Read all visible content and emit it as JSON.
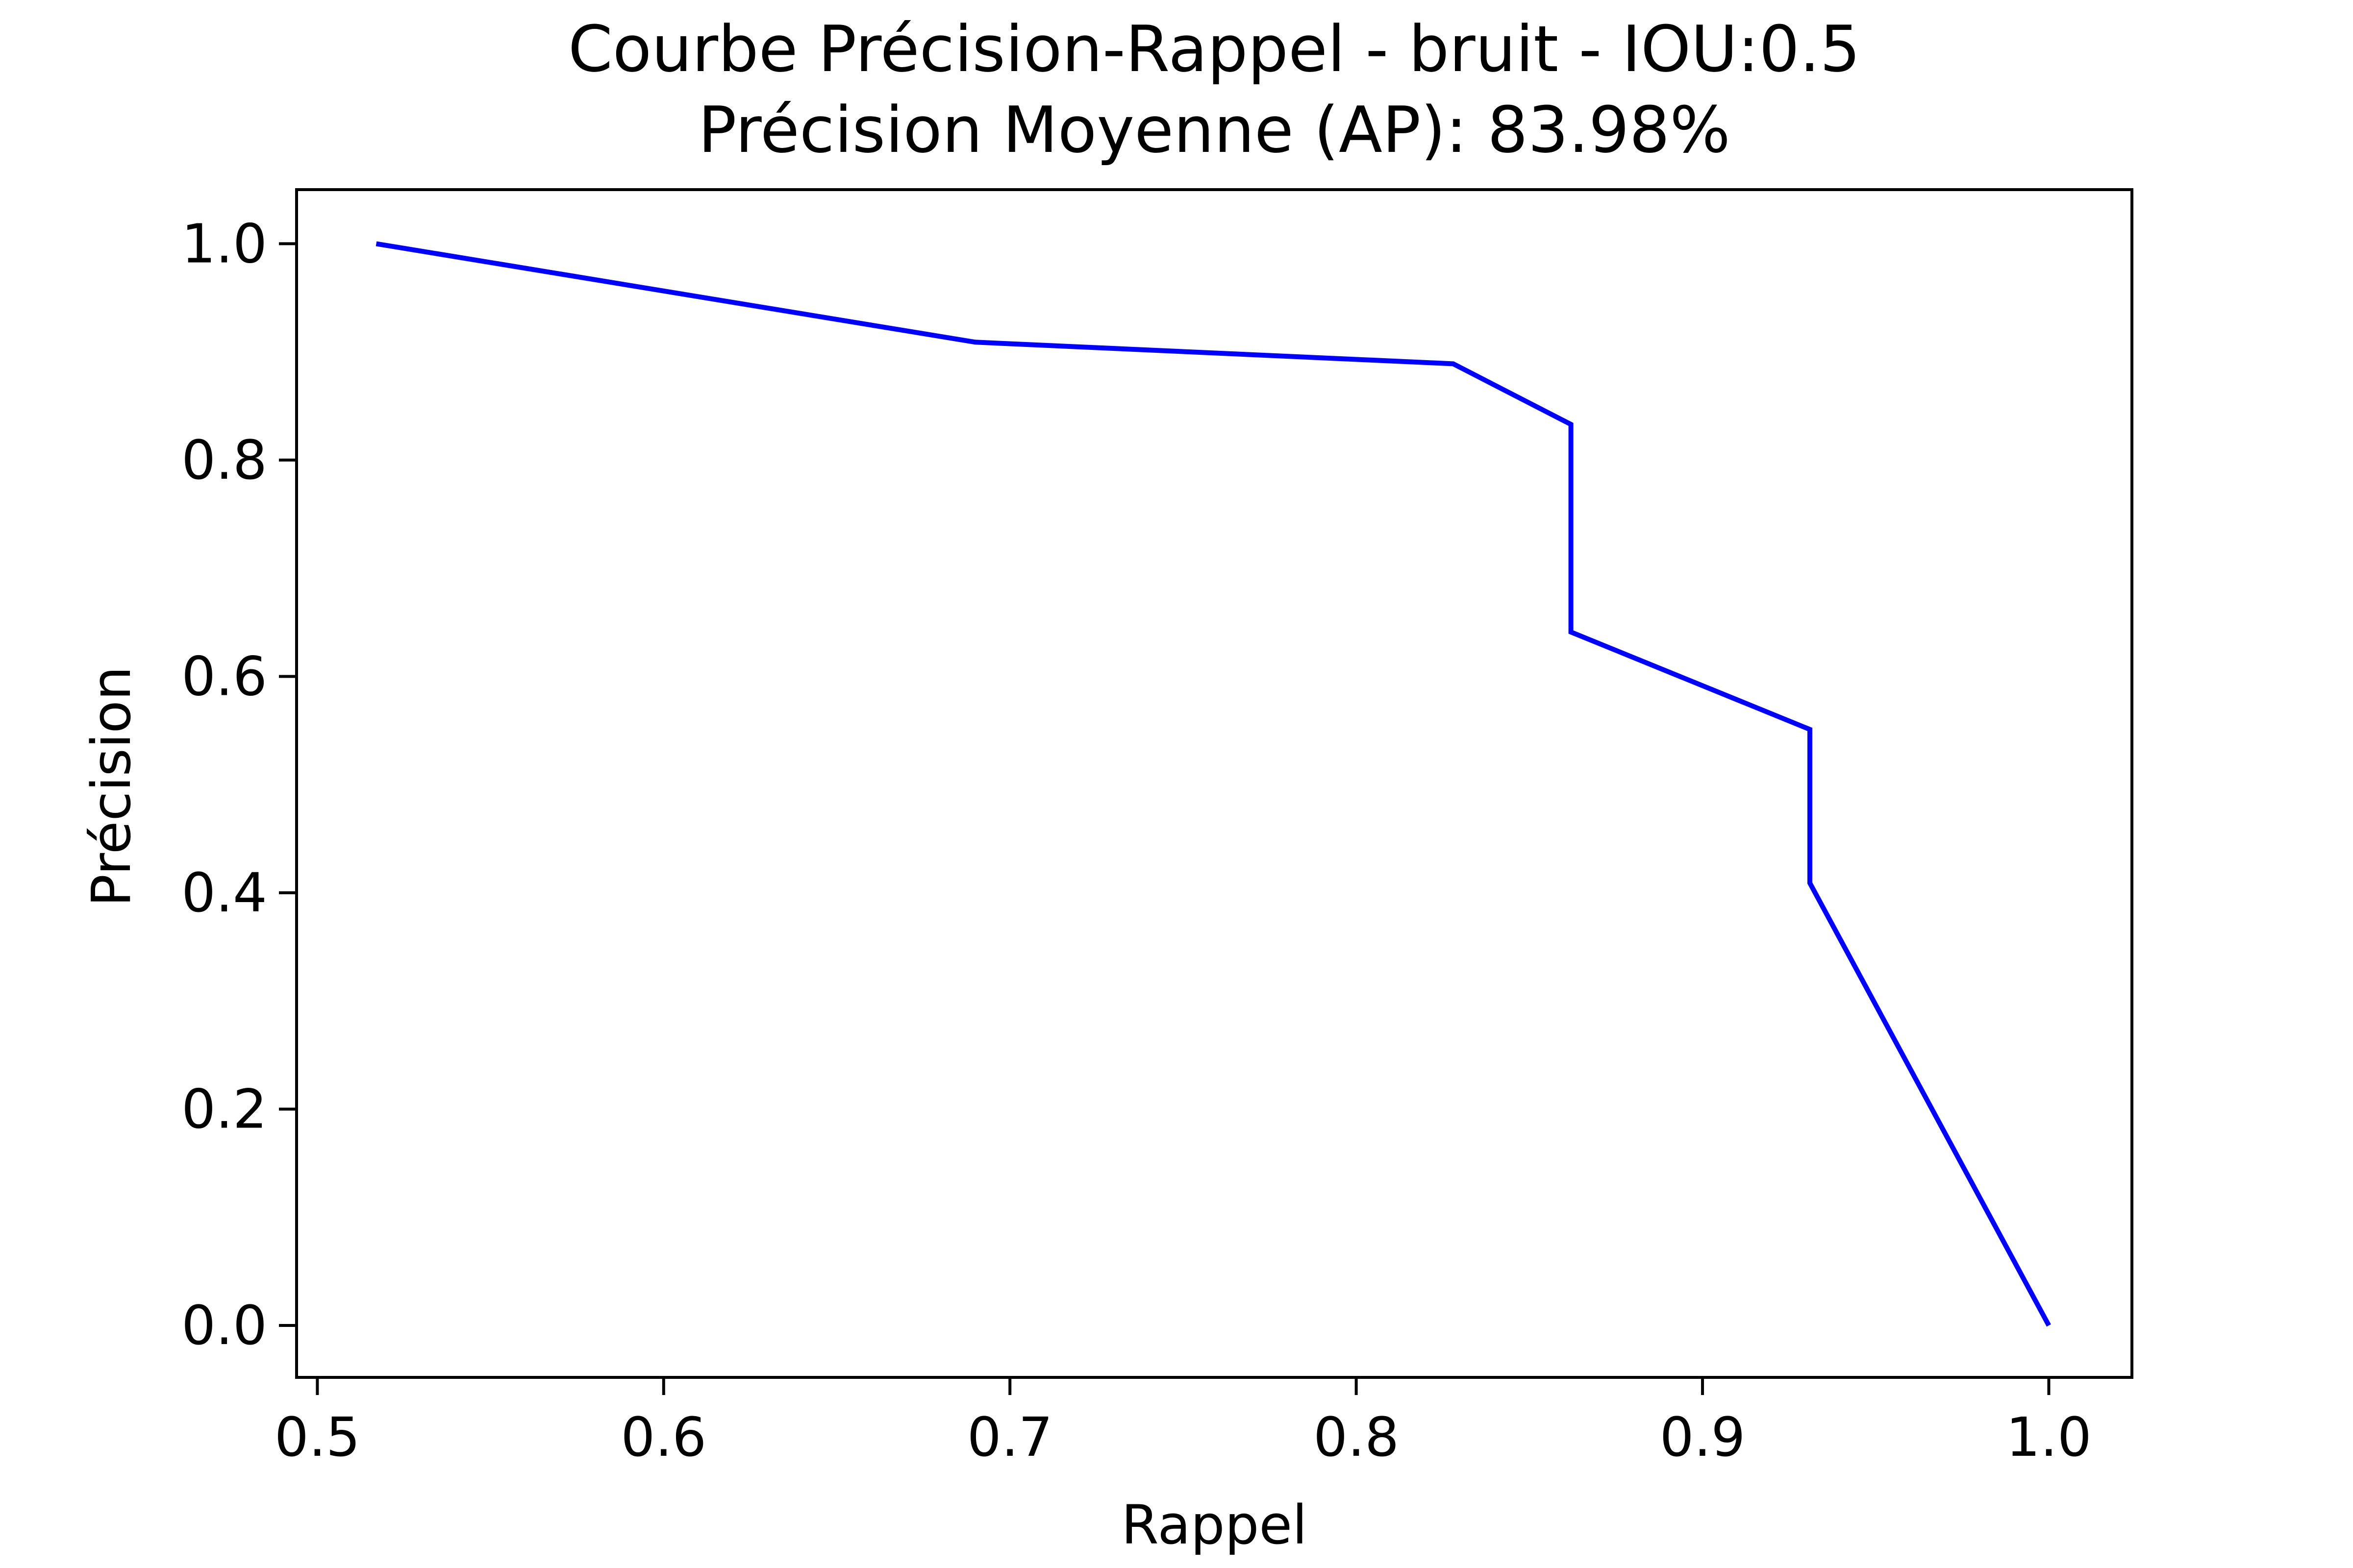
{
  "chart_data": {
    "type": "line",
    "title": "Courbe Précision-Rappel - bruit - IOU:0.5",
    "subtitle": "Précision Moyenne (AP): 83.98%",
    "xlabel": "Rappel",
    "ylabel": "Précision",
    "xlim": [
      0.494,
      1.024
    ],
    "ylim": [
      -0.048,
      1.05
    ],
    "xticks": [
      0.5,
      0.6,
      0.7,
      0.8,
      0.9,
      1.0
    ],
    "xtick_labels": [
      "0.5",
      "0.6",
      "0.7",
      "0.8",
      "0.9",
      "1.0"
    ],
    "yticks": [
      0.0,
      0.2,
      0.4,
      0.6,
      0.8,
      1.0
    ],
    "ytick_labels": [
      "0.0",
      "0.2",
      "0.4",
      "0.6",
      "0.8",
      "1.0"
    ],
    "grid": false,
    "series": [
      {
        "color": "#0000ff",
        "x": [
          0.517,
          0.69,
          0.828,
          0.862,
          0.862,
          0.931,
          0.931,
          1.0
        ],
        "y": [
          1.0,
          0.909,
          0.889,
          0.833,
          0.641,
          0.551,
          0.409,
          0.0
        ]
      }
    ]
  }
}
